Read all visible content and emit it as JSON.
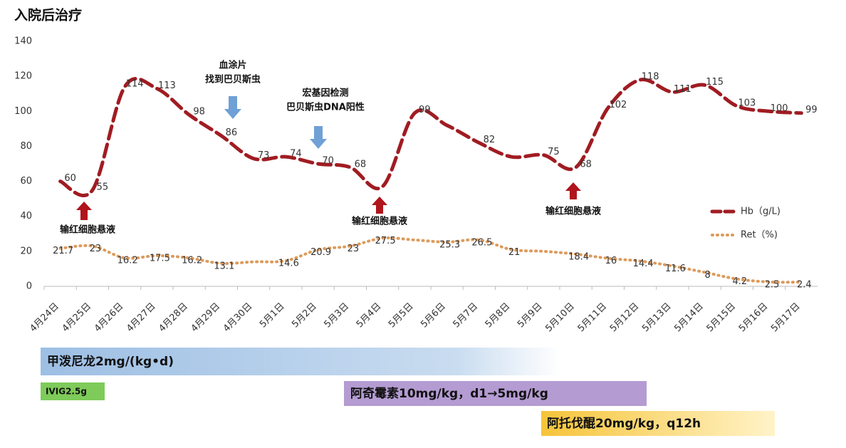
{
  "chart_data": {
    "type": "line",
    "title": "入院后治疗",
    "categories": [
      "4月24日",
      "4月25日",
      "4月26日",
      "4月27日",
      "4月28日",
      "4月29日",
      "4月30日",
      "5月1日",
      "5月2日",
      "5月3日",
      "5月4日",
      "5月5日",
      "5月6日",
      "5月7日",
      "5月8日",
      "5月9日",
      "5月10日",
      "5月11日",
      "5月12日",
      "5月13日",
      "5月14日",
      "5月15日",
      "5月16日",
      "5月17日"
    ],
    "series": [
      {
        "name": "Hb（g/L)",
        "color": "#a01c22",
        "style": "dashed",
        "values": [
          60,
          55,
          114,
          113,
          98,
          86,
          73,
          74,
          70,
          68,
          57,
          99,
          92,
          82,
          74,
          75,
          68,
          102,
          118,
          111,
          115,
          103,
          100,
          99
        ],
        "value_labels": [
          "60",
          "55",
          "114",
          "113",
          "98",
          "86",
          "73",
          "74",
          "70",
          "68",
          null,
          "99",
          null,
          "82",
          null,
          "75",
          "68",
          "102",
          "118",
          "111",
          "115",
          "103",
          "100",
          "99"
        ]
      },
      {
        "name": "Ret（%)",
        "color": "#dd9a5a",
        "style": "dotted",
        "values": [
          21.7,
          23,
          16.2,
          17.5,
          16.2,
          13.1,
          14,
          14.6,
          20.9,
          23,
          27.5,
          26.5,
          25.3,
          26.5,
          21,
          20,
          18.4,
          16,
          14.4,
          11.6,
          8,
          4.2,
          2.5,
          2.4
        ],
        "value_labels": [
          "21.7",
          "23",
          "16.2",
          "17.5",
          "16.2",
          "13.1",
          null,
          "14.6",
          "20.9",
          "23",
          "27.5",
          null,
          "25.3",
          "26.5",
          "21",
          null,
          "18.4",
          "16",
          "14.4",
          "11.6",
          "8",
          "4.2",
          "2.5",
          "2.4"
        ]
      }
    ],
    "ylim": [
      0,
      140
    ],
    "yticks": [
      0,
      20,
      40,
      60,
      80,
      100,
      120,
      140
    ],
    "grid": false,
    "legend": "right",
    "annotations": [
      "血涂片",
      "找到巴贝斯虫",
      "宏基因检测",
      "巴贝斯虫DNA阳性",
      "输红细胞悬液",
      "输红细胞悬液",
      "输红细胞悬液"
    ],
    "treatments": [
      "甲泼尼龙2mg/(kg•d)",
      "IVIG2.5g",
      "阿奇霉素10mg/kg，d1→5mg/kg",
      "阿托伐醌20mg/kg，q12h"
    ]
  }
}
